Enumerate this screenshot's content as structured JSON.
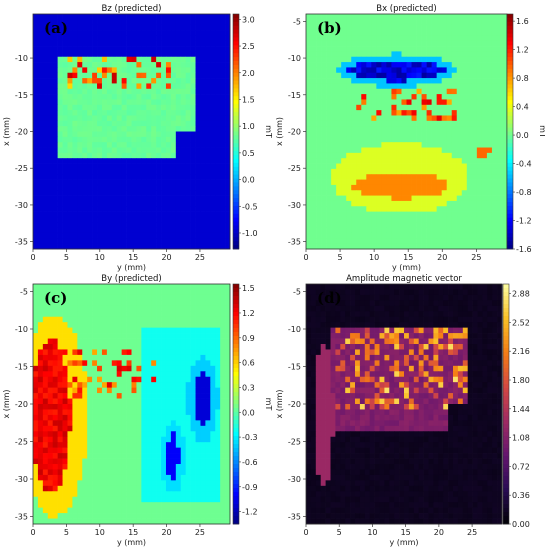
{
  "chart_data": [
    {
      "id": "bz",
      "type": "heatmap",
      "panel_label": "(a)",
      "title": "Bz (predicted)",
      "xlabel": "y (mm)",
      "ylabel": "x (mm)",
      "xlim": [
        0,
        29.5
      ],
      "ylim": [
        -36,
        -4
      ],
      "xticks": [
        "0",
        "5",
        "10",
        "15",
        "20",
        "25"
      ],
      "yticks": [
        "-10",
        "-15",
        "-20",
        "-25",
        "-30",
        "-35"
      ],
      "colorbar": {
        "label": "mT",
        "range": [
          -1.3,
          3.1
        ],
        "ticks": [
          "3.0",
          "2.5",
          "2.0",
          "1.5",
          "1.0",
          "0.5",
          "0.0",
          "-0.5",
          "-1.0"
        ],
        "colormap": "jet"
      }
    },
    {
      "id": "bx",
      "type": "heatmap",
      "panel_label": "(b)",
      "title": "Bx (predicted)",
      "xlabel": "y (mm)",
      "ylabel": "x (mm)",
      "xlim": [
        0,
        29.5
      ],
      "ylim": [
        -36,
        -4
      ],
      "xticks": [
        "0",
        "5",
        "10",
        "15",
        "20",
        "25"
      ],
      "yticks": [
        "-5",
        "-10",
        "-15",
        "-20",
        "-25",
        "-30",
        "-35"
      ],
      "colorbar": {
        "label": "mT",
        "range": [
          -1.6,
          1.7
        ],
        "ticks": [
          "1.6",
          "1.2",
          "0.8",
          "0.4",
          "0.0",
          "-0.4",
          "-0.8",
          "-1.2",
          "-1.6"
        ],
        "colormap": "jet"
      }
    },
    {
      "id": "by",
      "type": "heatmap",
      "panel_label": "(c)",
      "title": "By (predicted)",
      "xlabel": "y (mm)",
      "ylabel": "x (mm)",
      "xlim": [
        0,
        29.5
      ],
      "ylim": [
        -36,
        -4
      ],
      "xticks": [
        "0",
        "5",
        "10",
        "15",
        "20",
        "25"
      ],
      "yticks": [
        "-5",
        "-10",
        "-15",
        "-20",
        "-25",
        "-30",
        "-35"
      ],
      "colorbar": {
        "label": "mT",
        "range": [
          -1.35,
          1.55
        ],
        "ticks": [
          "1.5",
          "1.2",
          "0.9",
          "0.6",
          "0.3",
          "0.0",
          "-0.3",
          "-0.6",
          "-0.9",
          "-1.2"
        ],
        "colormap": "jet"
      }
    },
    {
      "id": "amp",
      "type": "heatmap",
      "panel_label": "(d)",
      "title": "Amplitude magnetic vector",
      "xlabel": "y (mm)",
      "ylabel": "x (mm)",
      "xlim": [
        0,
        29.5
      ],
      "ylim": [
        -36,
        -4
      ],
      "xticks": [
        "0",
        "5",
        "10",
        "15",
        "20",
        "25"
      ],
      "yticks": [
        "-5",
        "-10",
        "-15",
        "-20",
        "-25",
        "-30",
        "-35"
      ],
      "colorbar": {
        "label": "",
        "range": [
          0,
          3.0
        ],
        "ticks": [
          "2.88",
          "2.52",
          "2.16",
          "1.80",
          "1.44",
          "1.08",
          "0.72",
          "0.36",
          "0.00"
        ],
        "colormap": "inferno"
      }
    }
  ]
}
